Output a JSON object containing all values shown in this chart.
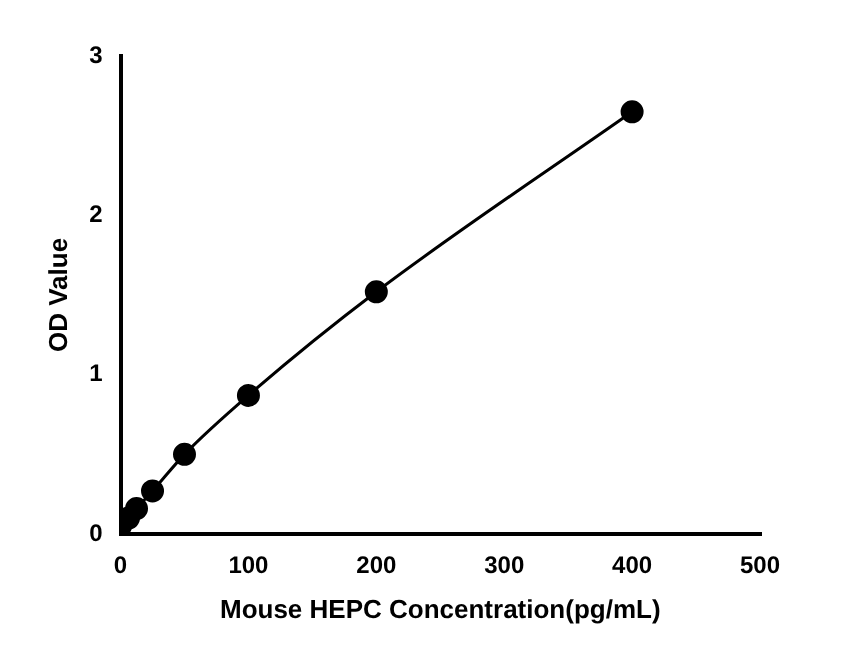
{
  "chart_data": {
    "type": "line",
    "xlabel": "Mouse HEPC Concentration(pg/mL)",
    "ylabel": "OD Value",
    "x": [
      0,
      6.25,
      12.5,
      25,
      50,
      100,
      200,
      400
    ],
    "series": [
      {
        "color": "#000000",
        "values": [
          0.05,
          0.1,
          0.16,
          0.27,
          0.5,
          0.87,
          1.52,
          2.65
        ]
      }
    ],
    "xlim": [
      0,
      500
    ],
    "xticks": [
      0,
      100,
      200,
      300,
      400,
      500
    ],
    "ylim": [
      0,
      3
    ],
    "yticks": [
      0,
      1,
      2,
      3
    ],
    "grid": false,
    "legend": false,
    "marker": "circle",
    "line_style": "solid"
  }
}
